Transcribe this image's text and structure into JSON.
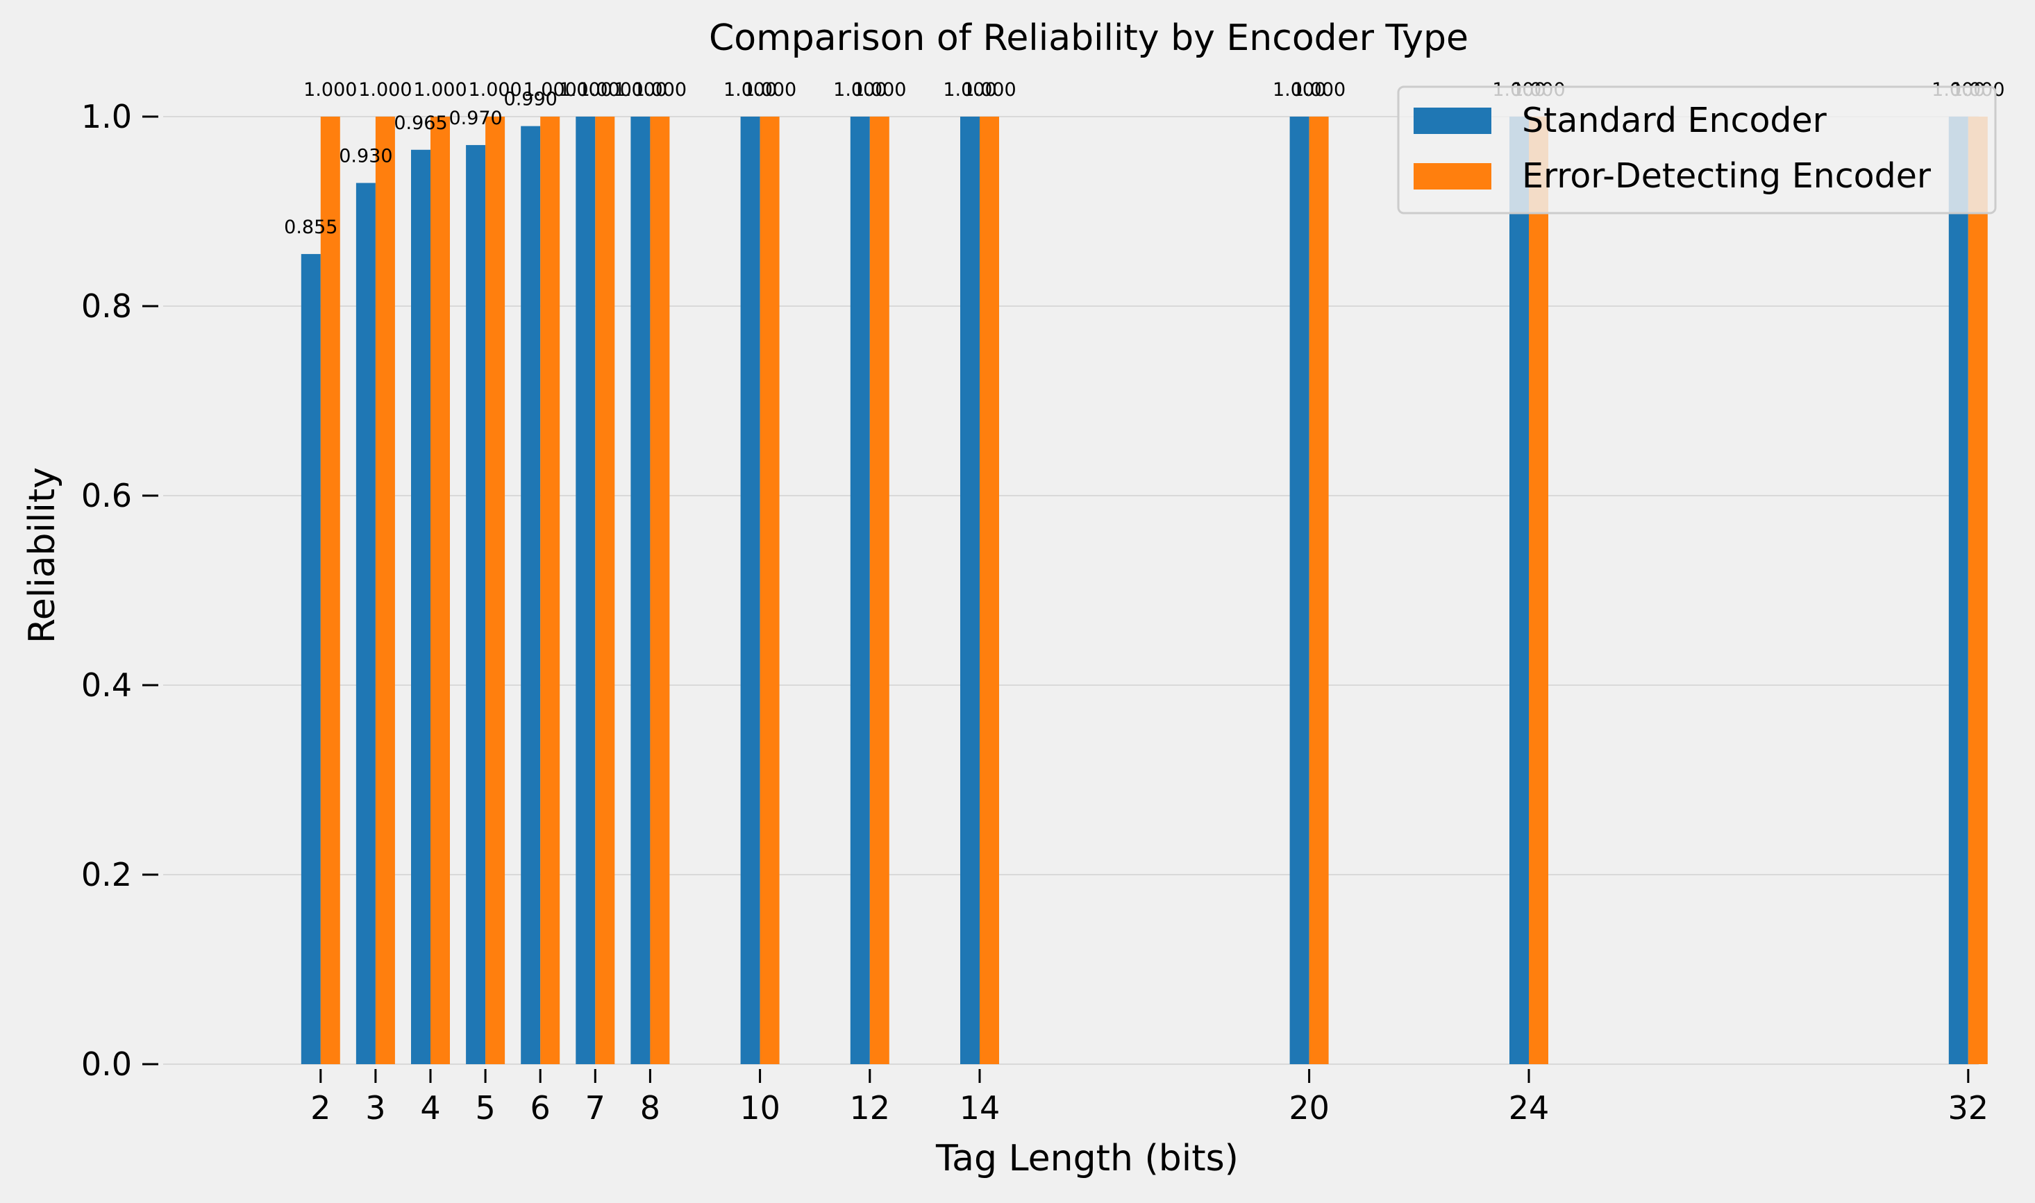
{
  "chart_data": {
    "type": "bar",
    "title": "Comparison of Reliability by Encoder Type",
    "xlabel": "Tag Length (bits)",
    "ylabel": "Reliability",
    "x": [
      2,
      3,
      4,
      5,
      6,
      7,
      8,
      10,
      12,
      14,
      20,
      24,
      32
    ],
    "ylim": [
      0,
      1.0
    ],
    "yticks": [
      0.0,
      0.2,
      0.4,
      0.6,
      0.8,
      1.0
    ],
    "ytick_labels": [
      "0.0",
      "0.2",
      "0.4",
      "0.6",
      "0.8",
      "1.0"
    ],
    "grid": "horizontal",
    "legend_position": "top-right",
    "series": [
      {
        "name": "Standard Encoder",
        "color": "#1f77b4",
        "values": [
          0.855,
          0.93,
          0.965,
          0.97,
          0.99,
          1.0,
          1.0,
          1.0,
          1.0,
          1.0,
          1.0,
          1.0,
          1.0
        ],
        "labels": [
          "0.855",
          "0.930",
          "0.965",
          "0.970",
          "0.990",
          "1.000",
          "1.000",
          "1.000",
          "1.000",
          "1.000",
          "1.000",
          "1.000",
          "1.000"
        ]
      },
      {
        "name": "Error-Detecting Encoder",
        "color": "#ff7f0e",
        "values": [
          1.0,
          1.0,
          1.0,
          1.0,
          1.0,
          1.0,
          1.0,
          1.0,
          1.0,
          1.0,
          1.0,
          1.0,
          1.0
        ],
        "labels": [
          "1.000",
          "1.000",
          "1.000",
          "1.000",
          "1.000",
          "1.000",
          "1.000",
          "1.000",
          "1.000",
          "1.000",
          "1.000",
          "1.000",
          "1.000"
        ]
      }
    ]
  }
}
